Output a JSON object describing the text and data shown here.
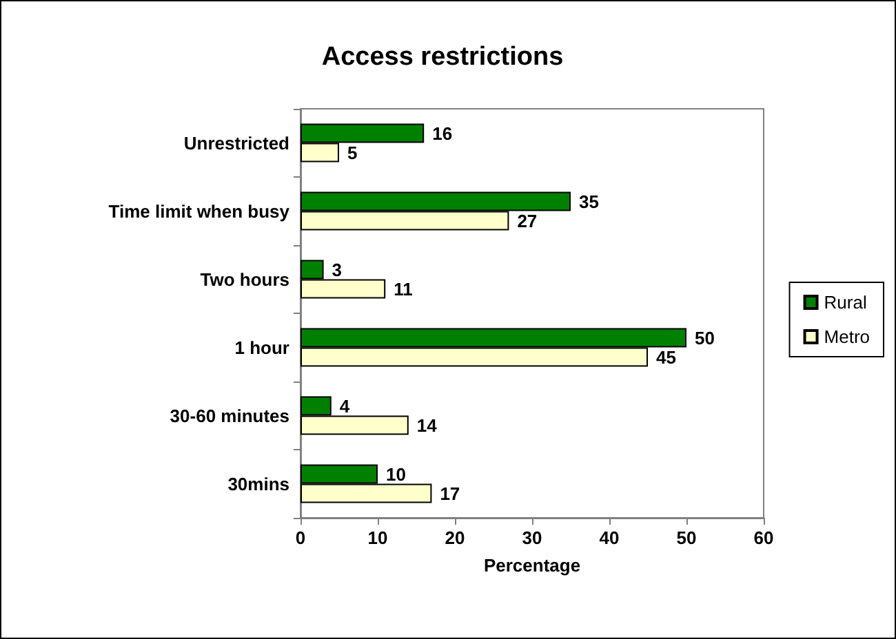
{
  "chart_data": {
    "type": "bar",
    "orientation": "horizontal",
    "title": "Access restrictions",
    "xlabel": "Percentage",
    "categories": [
      "Unrestricted",
      "Time limit when busy",
      "Two hours",
      "1 hour",
      "30-60 minutes",
      "30mins"
    ],
    "series": [
      {
        "name": "Rural",
        "color": "#008000",
        "values": [
          16,
          35,
          3,
          50,
          4,
          10
        ]
      },
      {
        "name": "Metro",
        "color": "#ffffcc",
        "values": [
          5,
          27,
          11,
          45,
          14,
          17
        ]
      }
    ],
    "xlim": [
      0,
      60
    ],
    "xticks": [
      0,
      10,
      20,
      30,
      40,
      50,
      60
    ],
    "data_labels": true,
    "legend": "right",
    "grid": false
  }
}
